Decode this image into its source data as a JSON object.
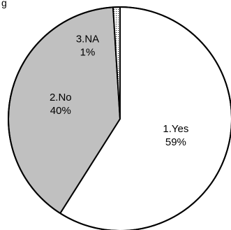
{
  "corner_text": "g",
  "chart_data": {
    "type": "pie",
    "title": "",
    "slices": [
      {
        "category": "1.Yes",
        "value": 59,
        "percent_label": "59%",
        "fill": "#ffffff",
        "pattern": "none"
      },
      {
        "category": "2.No",
        "value": 40,
        "percent_label": "40%",
        "fill": "#c0c0c0",
        "pattern": "none"
      },
      {
        "category": "3.NA",
        "value": 1,
        "percent_label": "1%",
        "fill": "#ffffff",
        "pattern": "dots"
      }
    ],
    "start_angle_deg": 0,
    "direction": "clockwise",
    "legend": "none"
  }
}
